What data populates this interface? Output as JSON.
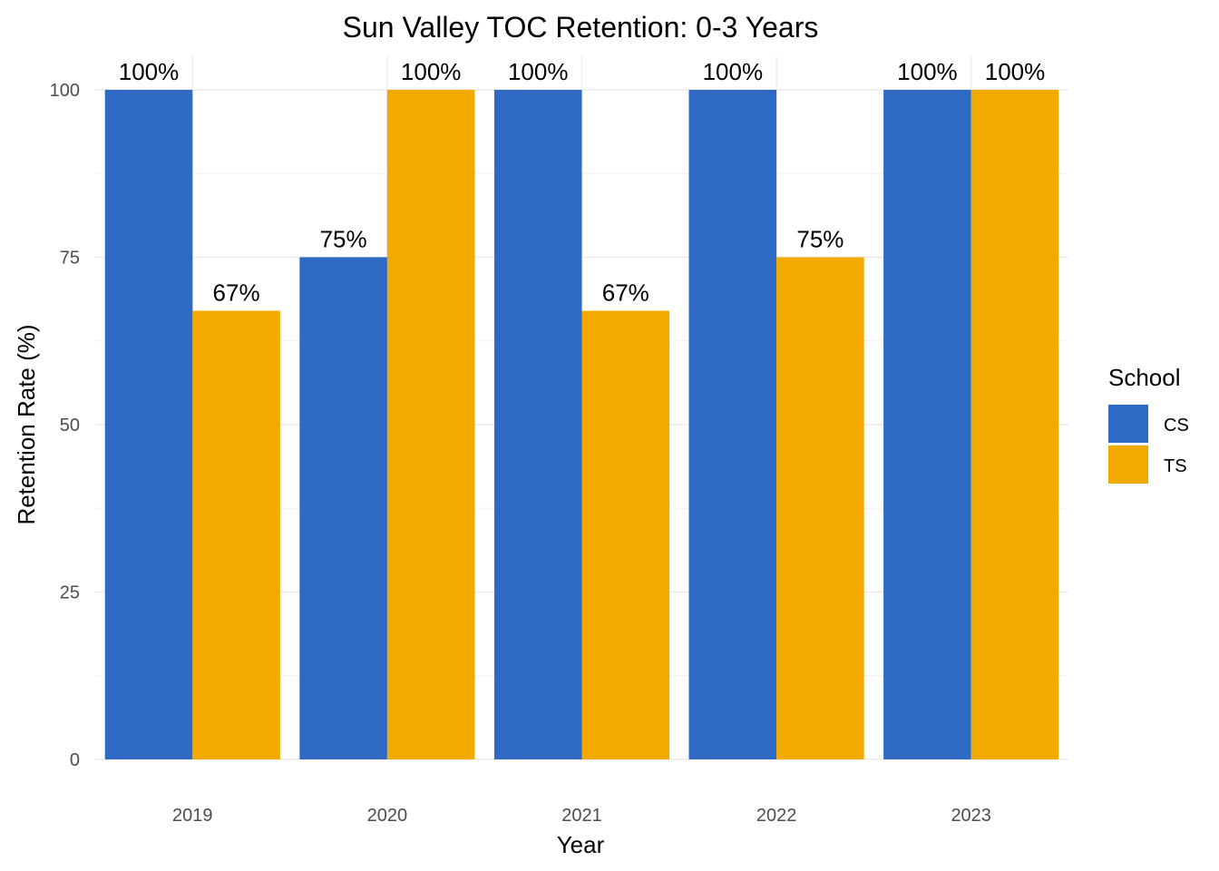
{
  "chart_data": {
    "type": "bar",
    "title": "Sun Valley TOC Retention: 0-3 Years",
    "xlabel": "Year",
    "ylabel": "Retention Rate (%)",
    "categories": [
      "2019",
      "2020",
      "2021",
      "2022",
      "2023"
    ],
    "series": [
      {
        "name": "CS",
        "color": "#2e69c4",
        "values": [
          100,
          75,
          100,
          100,
          100
        ],
        "labels": [
          "100%",
          "75%",
          "100%",
          "100%",
          "100%"
        ]
      },
      {
        "name": "TS",
        "color": "#f2a900",
        "values": [
          67,
          100,
          67,
          75,
          100
        ],
        "labels": [
          "67%",
          "100%",
          "67%",
          "75%",
          "100%"
        ]
      }
    ],
    "ylim": [
      0,
      100
    ],
    "yticks": [
      0,
      25,
      50,
      75,
      100
    ],
    "ytick_labels": [
      "0",
      "25",
      "50",
      "75",
      "100"
    ],
    "legend": {
      "title": "School",
      "position": "right"
    },
    "grid": true
  }
}
